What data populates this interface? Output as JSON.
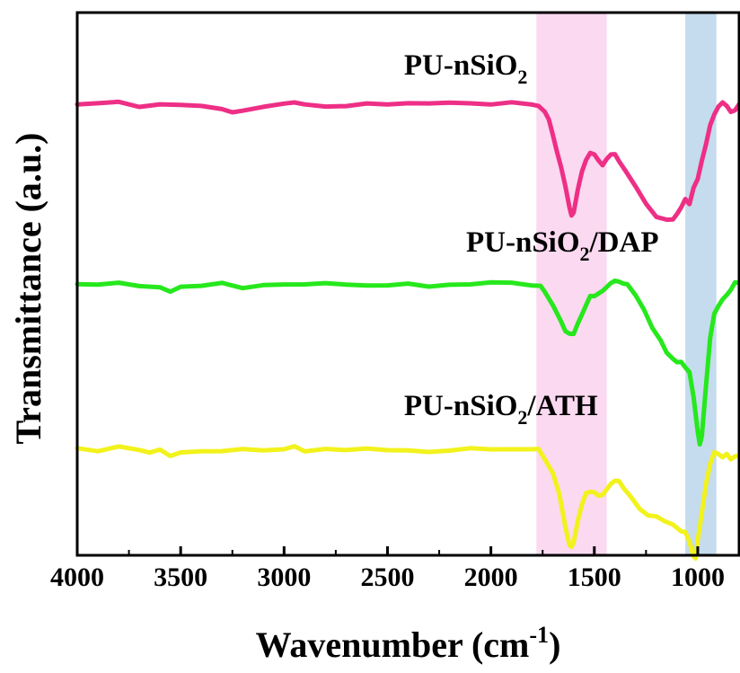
{
  "chart_data": {
    "type": "line",
    "xlabel": "Wavenumber (cm",
    "xlabel_sup": "-1",
    "xlabel_close": ")",
    "ylabel": "Transmittance (a.u.)",
    "xlim": [
      4000,
      800
    ],
    "x_reversed": true,
    "y_ticks_labeled": false,
    "grid": false,
    "x_ticks": [
      4000,
      3500,
      3000,
      2500,
      2000,
      1500,
      1000
    ],
    "bands": [
      {
        "from": 1780,
        "to": 1440,
        "color": "#fbd9f0"
      },
      {
        "from": 1060,
        "to": 910,
        "color": "#c5dbee"
      }
    ],
    "series": [
      {
        "name": "PU-nSiO",
        "label_sub": "2",
        "label_tail": "",
        "color": "#ee2f86",
        "points": [
          [
            4000,
            0.0
          ],
          [
            3900,
            0.01
          ],
          [
            3800,
            0.0
          ],
          [
            3700,
            0.02
          ],
          [
            3600,
            0.0
          ],
          [
            3500,
            0.02
          ],
          [
            3400,
            0.03
          ],
          [
            3300,
            0.05
          ],
          [
            3250,
            0.07
          ],
          [
            3200,
            0.06
          ],
          [
            3100,
            0.03
          ],
          [
            3000,
            0.01
          ],
          [
            2950,
            -0.02
          ],
          [
            2900,
            0.01
          ],
          [
            2800,
            0.02
          ],
          [
            2700,
            0.01
          ],
          [
            2600,
            0.0
          ],
          [
            2500,
            0.01
          ],
          [
            2400,
            0.0
          ],
          [
            2300,
            0.0
          ],
          [
            2200,
            0.0
          ],
          [
            2100,
            0.0
          ],
          [
            2000,
            0.0
          ],
          [
            1900,
            0.0
          ],
          [
            1800,
            0.0
          ],
          [
            1770,
            0.01
          ],
          [
            1740,
            0.05
          ],
          [
            1720,
            0.12
          ],
          [
            1700,
            0.23
          ],
          [
            1680,
            0.35
          ],
          [
            1660,
            0.47
          ],
          [
            1640,
            0.62
          ],
          [
            1620,
            0.78
          ],
          [
            1610,
            0.82
          ],
          [
            1600,
            0.8
          ],
          [
            1580,
            0.65
          ],
          [
            1560,
            0.5
          ],
          [
            1540,
            0.42
          ],
          [
            1520,
            0.38
          ],
          [
            1500,
            0.38
          ],
          [
            1480,
            0.42
          ],
          [
            1460,
            0.46
          ],
          [
            1440,
            0.4
          ],
          [
            1420,
            0.37
          ],
          [
            1400,
            0.38
          ],
          [
            1380,
            0.42
          ],
          [
            1350,
            0.5
          ],
          [
            1300,
            0.62
          ],
          [
            1250,
            0.75
          ],
          [
            1200,
            0.85
          ],
          [
            1150,
            0.87
          ],
          [
            1120,
            0.85
          ],
          [
            1100,
            0.82
          ],
          [
            1080,
            0.78
          ],
          [
            1060,
            0.7
          ],
          [
            1040,
            0.75
          ],
          [
            1020,
            0.62
          ],
          [
            1000,
            0.55
          ],
          [
            980,
            0.42
          ],
          [
            960,
            0.3
          ],
          [
            940,
            0.16
          ],
          [
            920,
            0.08
          ],
          [
            900,
            0.03
          ],
          [
            880,
            0.0
          ],
          [
            860,
            0.02
          ],
          [
            840,
            0.06
          ],
          [
            820,
            0.04
          ],
          [
            800,
            0.02
          ]
        ],
        "label_x": 2420
      },
      {
        "name": "PU-nSiO",
        "label_sub": "2",
        "label_tail": "/DAP",
        "color": "#26e81c",
        "points": [
          [
            4000,
            0.0
          ],
          [
            3900,
            0.0
          ],
          [
            3800,
            0.0
          ],
          [
            3700,
            0.01
          ],
          [
            3600,
            0.03
          ],
          [
            3550,
            0.05
          ],
          [
            3500,
            0.02
          ],
          [
            3400,
            0.01
          ],
          [
            3300,
            0.0
          ],
          [
            3200,
            0.02
          ],
          [
            3100,
            0.01
          ],
          [
            3000,
            0.0
          ],
          [
            2900,
            0.01
          ],
          [
            2800,
            0.0
          ],
          [
            2700,
            0.0
          ],
          [
            2600,
            0.0
          ],
          [
            2500,
            0.01
          ],
          [
            2400,
            0.0
          ],
          [
            2300,
            0.01
          ],
          [
            2200,
            0.0
          ],
          [
            2100,
            0.0
          ],
          [
            2000,
            0.0
          ],
          [
            1900,
            0.0
          ],
          [
            1800,
            0.0
          ],
          [
            1760,
            0.01
          ],
          [
            1740,
            0.05
          ],
          [
            1700,
            0.15
          ],
          [
            1660,
            0.28
          ],
          [
            1640,
            0.35
          ],
          [
            1620,
            0.38
          ],
          [
            1600,
            0.36
          ],
          [
            1580,
            0.3
          ],
          [
            1560,
            0.22
          ],
          [
            1540,
            0.15
          ],
          [
            1520,
            0.1
          ],
          [
            1500,
            0.08
          ],
          [
            1460,
            0.04
          ],
          [
            1420,
            0.0
          ],
          [
            1400,
            -0.02
          ],
          [
            1380,
            -0.02
          ],
          [
            1360,
            -0.01
          ],
          [
            1340,
            0.0
          ],
          [
            1300,
            0.08
          ],
          [
            1260,
            0.2
          ],
          [
            1220,
            0.33
          ],
          [
            1180,
            0.42
          ],
          [
            1150,
            0.5
          ],
          [
            1120,
            0.55
          ],
          [
            1100,
            0.57
          ],
          [
            1080,
            0.58
          ],
          [
            1060,
            0.62
          ],
          [
            1040,
            0.65
          ],
          [
            1020,
            0.85
          ],
          [
            1000,
            1.1
          ],
          [
            990,
            1.18
          ],
          [
            980,
            1.12
          ],
          [
            960,
            0.75
          ],
          [
            940,
            0.4
          ],
          [
            920,
            0.22
          ],
          [
            900,
            0.16
          ],
          [
            880,
            0.12
          ],
          [
            860,
            0.08
          ],
          [
            840,
            0.04
          ],
          [
            820,
            0.0
          ],
          [
            800,
            -0.02
          ]
        ],
        "label_x": 2120
      },
      {
        "name": "PU-nSiO",
        "label_sub": "2",
        "label_tail": "/ATH",
        "color": "#f2f21c",
        "points": [
          [
            4000,
            0.0
          ],
          [
            3900,
            0.02
          ],
          [
            3800,
            0.0
          ],
          [
            3700,
            0.01
          ],
          [
            3650,
            0.05
          ],
          [
            3600,
            0.02
          ],
          [
            3550,
            0.06
          ],
          [
            3500,
            0.05
          ],
          [
            3400,
            0.04
          ],
          [
            3300,
            0.03
          ],
          [
            3200,
            0.02
          ],
          [
            3100,
            0.01
          ],
          [
            3000,
            0.02
          ],
          [
            2950,
            -0.02
          ],
          [
            2900,
            0.02
          ],
          [
            2800,
            0.02
          ],
          [
            2700,
            0.03
          ],
          [
            2600,
            0.02
          ],
          [
            2500,
            0.02
          ],
          [
            2400,
            0.01
          ],
          [
            2300,
            0.02
          ],
          [
            2200,
            0.02
          ],
          [
            2100,
            0.01
          ],
          [
            2000,
            0.01
          ],
          [
            1900,
            0.01
          ],
          [
            1800,
            0.0
          ],
          [
            1770,
            0.02
          ],
          [
            1740,
            0.08
          ],
          [
            1700,
            0.2
          ],
          [
            1670,
            0.35
          ],
          [
            1640,
            0.58
          ],
          [
            1620,
            0.72
          ],
          [
            1610,
            0.74
          ],
          [
            1600,
            0.7
          ],
          [
            1580,
            0.55
          ],
          [
            1560,
            0.42
          ],
          [
            1540,
            0.35
          ],
          [
            1520,
            0.32
          ],
          [
            1500,
            0.32
          ],
          [
            1480,
            0.35
          ],
          [
            1460,
            0.35
          ],
          [
            1440,
            0.32
          ],
          [
            1420,
            0.28
          ],
          [
            1400,
            0.25
          ],
          [
            1380,
            0.25
          ],
          [
            1360,
            0.3
          ],
          [
            1320,
            0.38
          ],
          [
            1280,
            0.45
          ],
          [
            1240,
            0.5
          ],
          [
            1200,
            0.52
          ],
          [
            1160,
            0.55
          ],
          [
            1120,
            0.58
          ],
          [
            1080,
            0.62
          ],
          [
            1060,
            0.64
          ],
          [
            1040,
            0.7
          ],
          [
            1020,
            0.8
          ],
          [
            1010,
            0.82
          ],
          [
            1000,
            0.7
          ],
          [
            980,
            0.48
          ],
          [
            960,
            0.28
          ],
          [
            940,
            0.12
          ],
          [
            920,
            0.04
          ],
          [
            900,
            0.04
          ],
          [
            880,
            0.08
          ],
          [
            860,
            0.06
          ],
          [
            840,
            0.08
          ],
          [
            820,
            0.06
          ],
          [
            800,
            0.05
          ]
        ],
        "label_x": 2420
      }
    ]
  }
}
